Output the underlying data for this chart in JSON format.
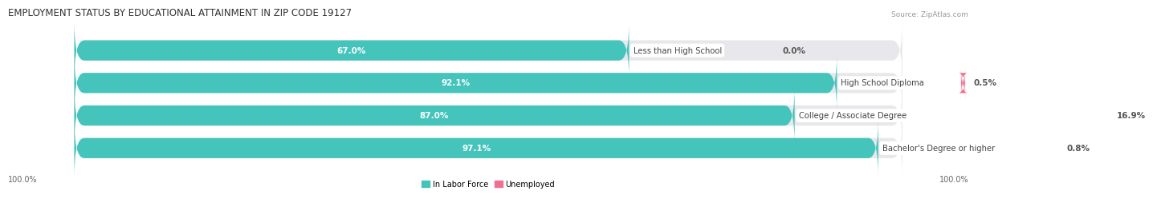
{
  "title": "EMPLOYMENT STATUS BY EDUCATIONAL ATTAINMENT IN ZIP CODE 19127",
  "source": "Source: ZipAtlas.com",
  "categories": [
    "Less than High School",
    "High School Diploma",
    "College / Associate Degree",
    "Bachelor's Degree or higher"
  ],
  "in_labor_force": [
    67.0,
    92.1,
    87.0,
    97.1
  ],
  "unemployed": [
    0.0,
    0.5,
    16.9,
    0.8
  ],
  "color_labor": "#45C4BC",
  "color_unemployed": "#F07090",
  "color_bg_bar": "#E8E8EC",
  "bar_height": 0.62,
  "x_left_label": "100.0%",
  "x_right_label": "100.0%",
  "legend_labor": "In Labor Force",
  "legend_unemployed": "Unemployed",
  "title_fontsize": 8.5,
  "source_fontsize": 6.5,
  "bar_label_fontsize": 7.5,
  "category_label_fontsize": 7.2,
  "axis_label_fontsize": 7.0
}
